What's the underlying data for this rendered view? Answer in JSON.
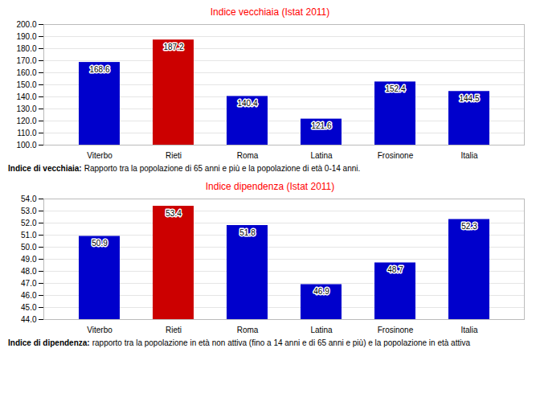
{
  "chart_data": [
    {
      "type": "bar",
      "title": "Indice vecchiaia (Istat 2011)",
      "categories": [
        "Viterbo",
        "Rieti",
        "Roma",
        "Latina",
        "Frosinone",
        "Italia"
      ],
      "values": [
        168.6,
        187.2,
        140.4,
        121.6,
        152.4,
        144.5
      ],
      "colors": [
        "#0000cc",
        "#cc0000",
        "#0000cc",
        "#0000cc",
        "#0000cc",
        "#0000cc"
      ],
      "ylim": [
        100.0,
        200.0
      ],
      "yticks": [
        {
          "value": 100,
          "label": "100.0"
        },
        {
          "value": 110,
          "label": "110.0"
        },
        {
          "value": 120,
          "label": "120.0"
        },
        {
          "value": 130,
          "label": "130.0"
        },
        {
          "value": 140,
          "label": "140.0"
        },
        {
          "value": 150,
          "label": "150.0"
        },
        {
          "value": 160,
          "label": "160.0"
        },
        {
          "value": 170,
          "label": "170.0"
        },
        {
          "value": 180,
          "label": "180.0"
        },
        {
          "value": 190,
          "label": "190.0"
        },
        {
          "value": 200,
          "label": "200.0"
        }
      ],
      "grid": true,
      "data_labels": true,
      "annotations": [
        "Indice di vecchiaia:",
        "Rapporto tra la popolazione di 65 anni e più e la popolazione di età 0-14 anni."
      ]
    },
    {
      "type": "bar",
      "title": "Indice dipendenza (Istat 2011)",
      "categories": [
        "Viterbo",
        "Rieti",
        "Roma",
        "Latina",
        "Frosinone",
        "Italia"
      ],
      "values": [
        50.9,
        53.4,
        51.8,
        46.9,
        48.7,
        52.3
      ],
      "colors": [
        "#0000cc",
        "#cc0000",
        "#0000cc",
        "#0000cc",
        "#0000cc",
        "#0000cc"
      ],
      "ylim": [
        44.0,
        54.0
      ],
      "yticks": [
        {
          "value": 44,
          "label": "44.0"
        },
        {
          "value": 45,
          "label": "45.0"
        },
        {
          "value": 46,
          "label": "46.0"
        },
        {
          "value": 47,
          "label": "47.0"
        },
        {
          "value": 48,
          "label": "48.0"
        },
        {
          "value": 49,
          "label": "49.0"
        },
        {
          "value": 50,
          "label": "50.0"
        },
        {
          "value": 51,
          "label": "51.0"
        },
        {
          "value": 52,
          "label": "52.0"
        },
        {
          "value": 53,
          "label": "53.0"
        },
        {
          "value": 54,
          "label": "54.0"
        }
      ],
      "grid": true,
      "data_labels": true,
      "annotations": [
        "Indice di dipendenza:",
        "rapporto tra la popolazione in età non attiva (fino a 14 anni e di 65 anni e più) e la popolazione in età attiva"
      ]
    }
  ]
}
